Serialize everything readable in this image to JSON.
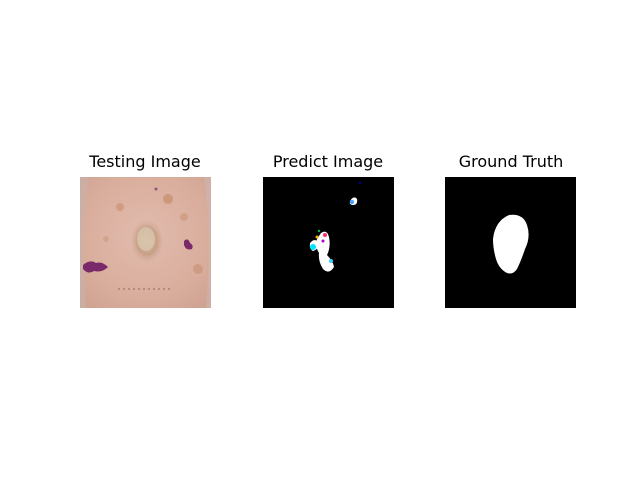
{
  "panels": [
    {
      "title": "Testing Image",
      "content": "dermoscopy-photo"
    },
    {
      "title": "Predict Image",
      "content": "predicted-segmentation-mask"
    },
    {
      "title": "Ground Truth",
      "content": "ground-truth-segmentation-mask"
    }
  ],
  "colors": {
    "background": "#ffffff",
    "skin": "#dcb2a4",
    "lesion": "#c9a08b",
    "ink_mark": "#7a2a6a",
    "mask_background": "#000000",
    "mask_foreground": "#ffffff"
  }
}
